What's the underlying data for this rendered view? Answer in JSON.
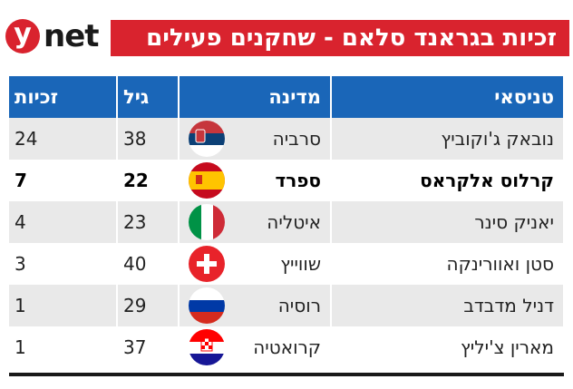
{
  "logo": {
    "letter": "y",
    "text": "net"
  },
  "title": "זכיות בגראנד סלאם - שחקנים פעילים",
  "table": {
    "headers": {
      "player": "טניסאי",
      "country": "מדינה",
      "age": "גיל",
      "titles": "זכיות"
    },
    "rows": [
      {
        "player": "נובאק ג'וקוביץ",
        "country": "סרביה",
        "flag": "serbia-flag-icon",
        "age": "38",
        "titles": "24",
        "bold": false
      },
      {
        "player": "קרלוס אלקראס",
        "country": "ספרד",
        "flag": "spain-flag-icon",
        "age": "22",
        "titles": "7",
        "bold": true
      },
      {
        "player": "יאניק סינר",
        "country": "איטליה",
        "flag": "italy-flag-icon",
        "age": "23",
        "titles": "4",
        "bold": false
      },
      {
        "player": "סטן ואוורינקה",
        "country": "שווייץ",
        "flag": "switzerland-flag-icon",
        "age": "40",
        "titles": "3",
        "bold": false
      },
      {
        "player": "דניל מדבדב",
        "country": "רוסיה",
        "flag": "russia-flag-icon",
        "age": "29",
        "titles": "1",
        "bold": false
      },
      {
        "player": "מארין צ'יליץ",
        "country": "קרואטיה",
        "flag": "croatia-flag-icon",
        "age": "37",
        "titles": "1",
        "bold": false
      }
    ]
  },
  "colors": {
    "brand_red": "#d9232e",
    "header_blue": "#1a66b8",
    "row_gray": "#e9e9e9"
  }
}
